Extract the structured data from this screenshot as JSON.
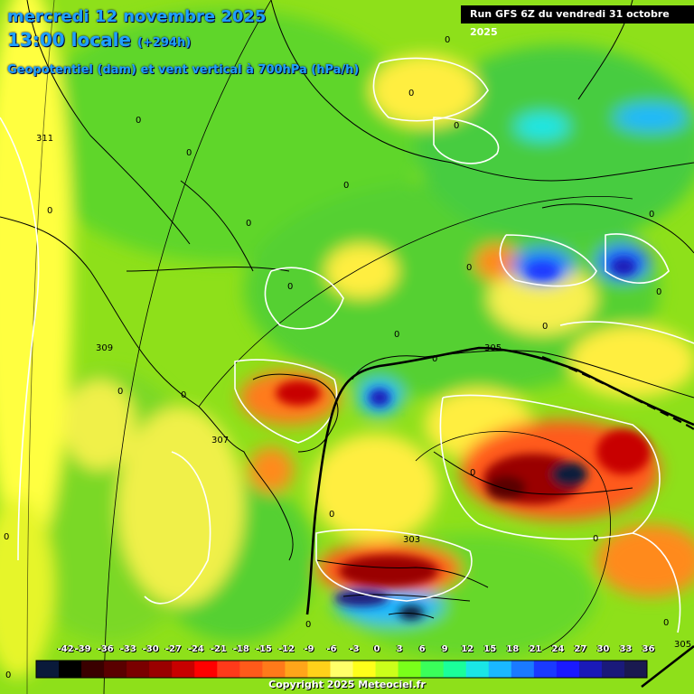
{
  "header": {
    "date_line": "mercredi 12 novembre 2025",
    "time_line": "13:00 locale",
    "lead_time": "(+294h)",
    "field_title": "Geopotentiel (dam) et vent vertical à 700hPa (hPa/h)",
    "run_info": "Run GFS 6Z du vendredi 31 octobre 2025"
  },
  "legend": {
    "ticks": [
      "-42",
      "-39",
      "-36",
      "-33",
      "-30",
      "-27",
      "-24",
      "-21",
      "-18",
      "-15",
      "-12",
      "-9",
      "-6",
      "-3",
      "0",
      "3",
      "6",
      "9",
      "12",
      "15",
      "18",
      "21",
      "24",
      "27",
      "30",
      "33",
      "36"
    ],
    "colors": [
      "#0a1a3a",
      "#000000",
      "#3a0000",
      "#5a0000",
      "#7a0000",
      "#9a0000",
      "#c80000",
      "#ff0000",
      "#ff3a1a",
      "#ff5a1a",
      "#ff7a1a",
      "#ffa51a",
      "#ffd11a",
      "#ffff6a",
      "#ffff1a",
      "#ccff1a",
      "#7aff1a",
      "#3aff5a",
      "#1aff9a",
      "#1ae6e6",
      "#1ab8ff",
      "#1a7aff",
      "#1a3aff",
      "#1a1aff",
      "#1a1ab8",
      "#1a1a7a",
      "#1a1a50"
    ]
  },
  "map": {
    "contour_labels": [
      "311",
      "309",
      "307",
      "305",
      "303",
      "305"
    ],
    "zero_labels": [
      "0",
      "0",
      "0",
      "0",
      "0",
      "0",
      "0",
      "0",
      "0",
      "0",
      "0",
      "0",
      "0",
      "0",
      "0",
      "0",
      "0",
      "0",
      "0",
      "0",
      "0",
      "0",
      "0",
      "0"
    ]
  },
  "footer": {
    "copyright": "Copyright 2025 Meteociel.fr"
  }
}
